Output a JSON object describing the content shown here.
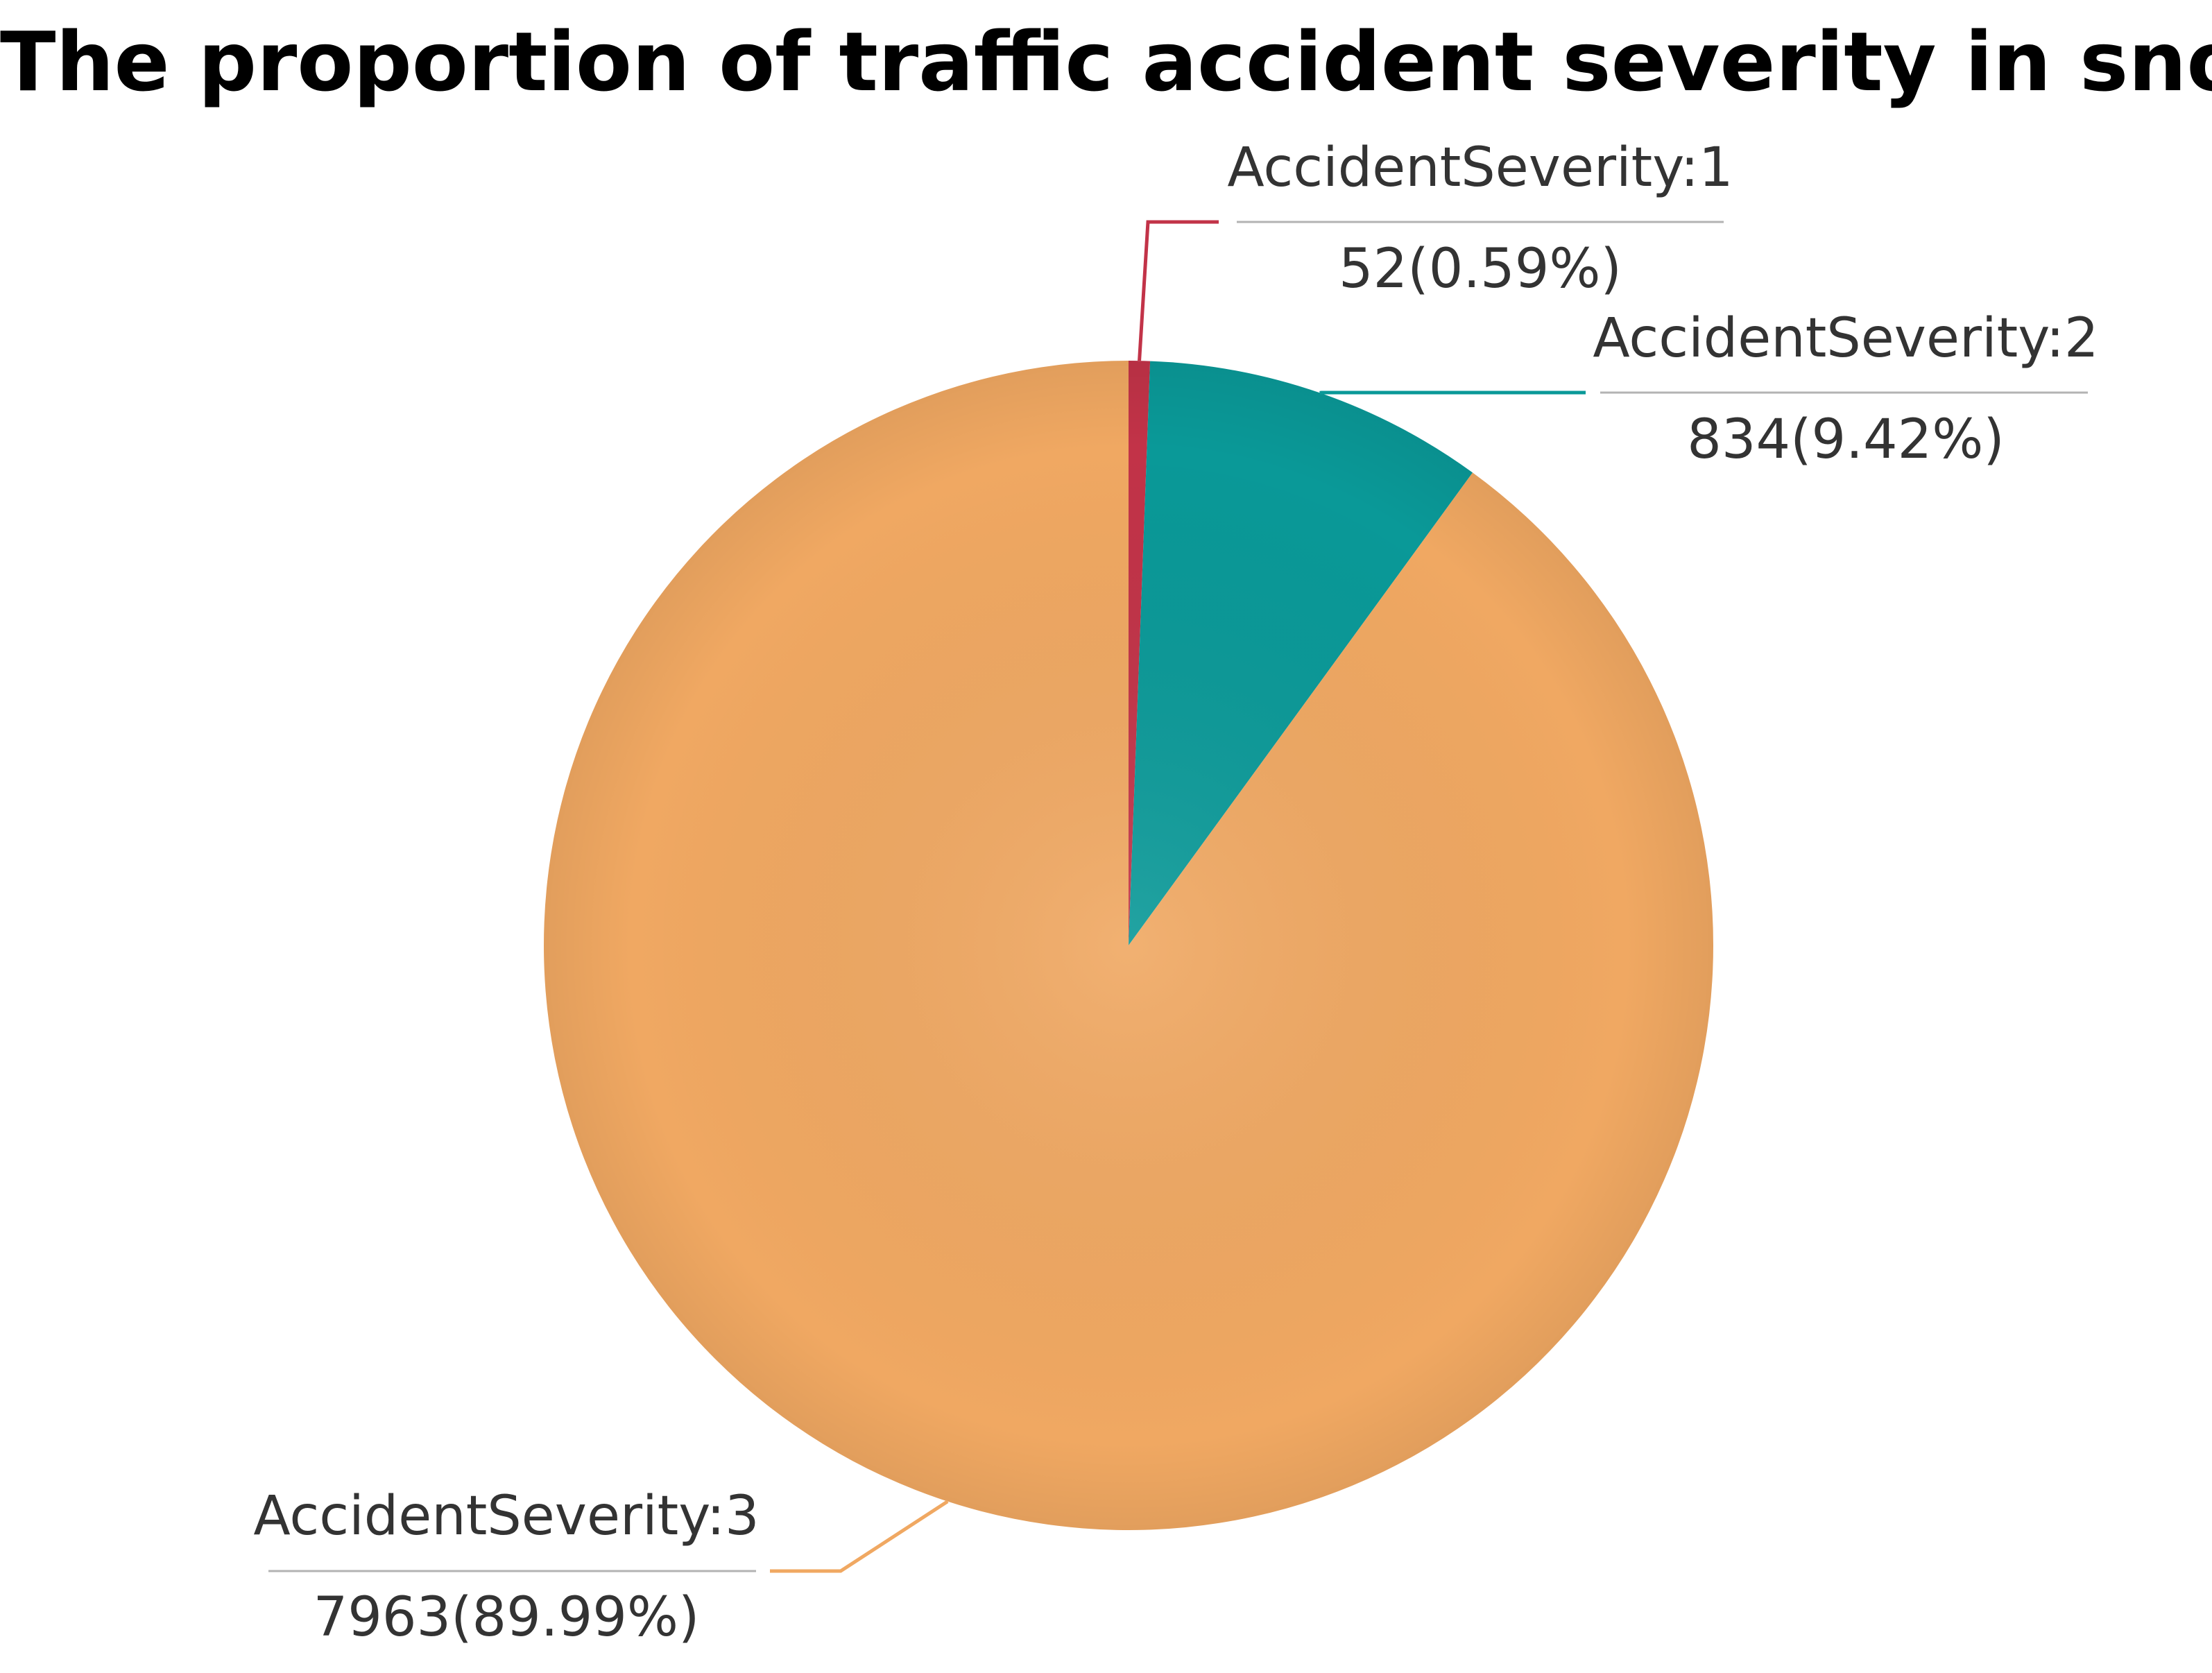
{
  "chart_data": {
    "type": "pie",
    "title": "The proportion of traffic accident severity in snow",
    "slices": [
      {
        "name": "AccidentSeverity:1",
        "value": 52,
        "percent_label": "52(0.59%)",
        "color": "#c23348"
      },
      {
        "name": "AccidentSeverity:2",
        "value": 834,
        "percent_label": "834(9.42%)",
        "color": "#0a9998"
      },
      {
        "name": "AccidentSeverity:3",
        "value": 7963,
        "percent_label": "7963(89.99%)",
        "color": "#f0a862"
      }
    ],
    "start_angle": "top",
    "direction": "clockwise",
    "legend": "none"
  }
}
